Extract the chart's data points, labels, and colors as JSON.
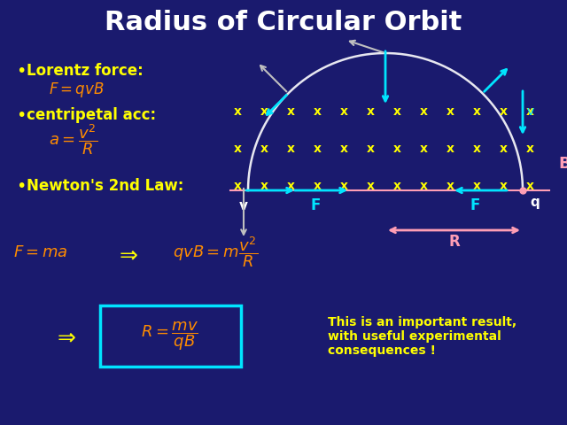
{
  "title": "Radius of Circular Orbit",
  "bg_color": "#1a1a6e",
  "title_color": "#ffffff",
  "title_fontsize": 22,
  "bullet1": "Lorentz force:",
  "eq1": "$F = qvB$",
  "bullet2": "centripetal acc:",
  "eq2": "$a = \\dfrac{v^2}{R}$",
  "bullet3": "Newton's 2nd Law:",
  "eq3": "$F = ma$",
  "eq4": "$qvB = m\\dfrac{v^2}{R}$",
  "eq5": "$R = \\dfrac{mv}{qB}$",
  "note": "This is an important result,\nwith useful experimental\nconsequences !",
  "yellow": "#ffff00",
  "orange": "#ff8c00",
  "cyan": "#00e5ff",
  "pink": "#ff9eb5",
  "white": "#ffffff",
  "gray": "#c0c0c0"
}
